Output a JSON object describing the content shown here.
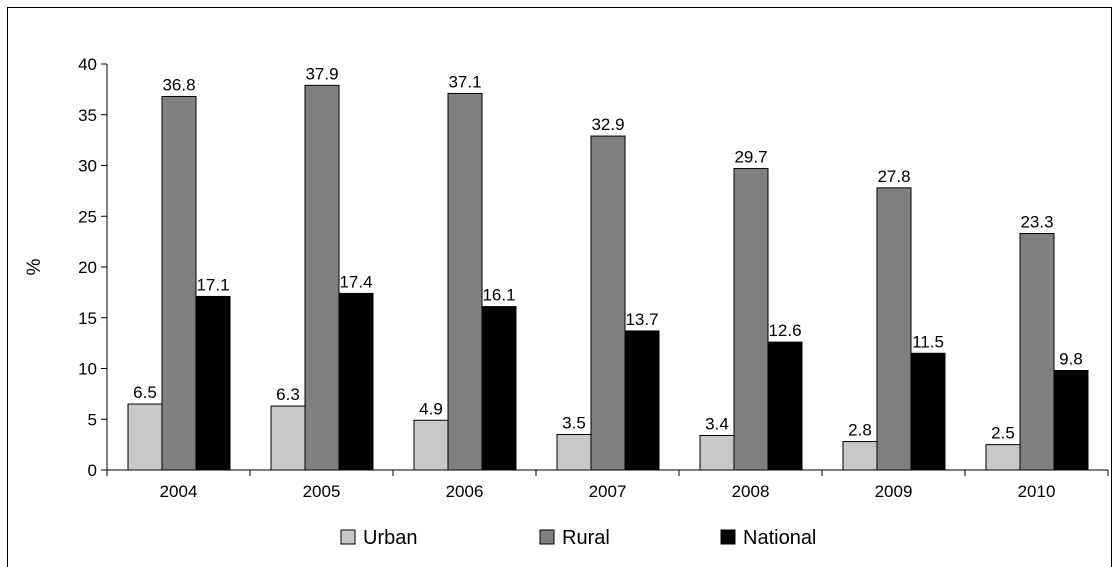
{
  "chart_data": {
    "type": "bar",
    "title": "",
    "xlabel": "",
    "ylabel": "%",
    "ylim": [
      0,
      40
    ],
    "yticks": [
      "0",
      "5",
      "10",
      "15",
      "20",
      "25",
      "30",
      "35",
      "40"
    ],
    "categories": [
      "2004",
      "2005",
      "2006",
      "2007",
      "2008",
      "2009",
      "2010"
    ],
    "series": [
      {
        "name": "Urban",
        "color": "#c8c8c8",
        "values": [
          6.5,
          6.3,
          4.9,
          3.5,
          3.4,
          2.8,
          2.5
        ],
        "labels": [
          "6.5",
          "6.3",
          "4.9",
          "3.5",
          "3.4",
          "2.8",
          "2.5"
        ]
      },
      {
        "name": "Rural",
        "color": "#808080",
        "values": [
          36.8,
          37.9,
          37.1,
          32.9,
          29.7,
          27.8,
          23.3
        ],
        "labels": [
          "36.8",
          "37.9",
          "37.1",
          "32.9",
          "29.7",
          "27.8",
          "23.3"
        ]
      },
      {
        "name": "National",
        "color": "#000000",
        "values": [
          17.1,
          17.4,
          16.1,
          13.7,
          12.6,
          11.5,
          9.8
        ],
        "labels": [
          "17.1",
          "17.4",
          "16.1",
          "13.7",
          "12.6",
          "11.5",
          "9.8"
        ]
      }
    ],
    "grid": false,
    "legend_position": "bottom"
  }
}
